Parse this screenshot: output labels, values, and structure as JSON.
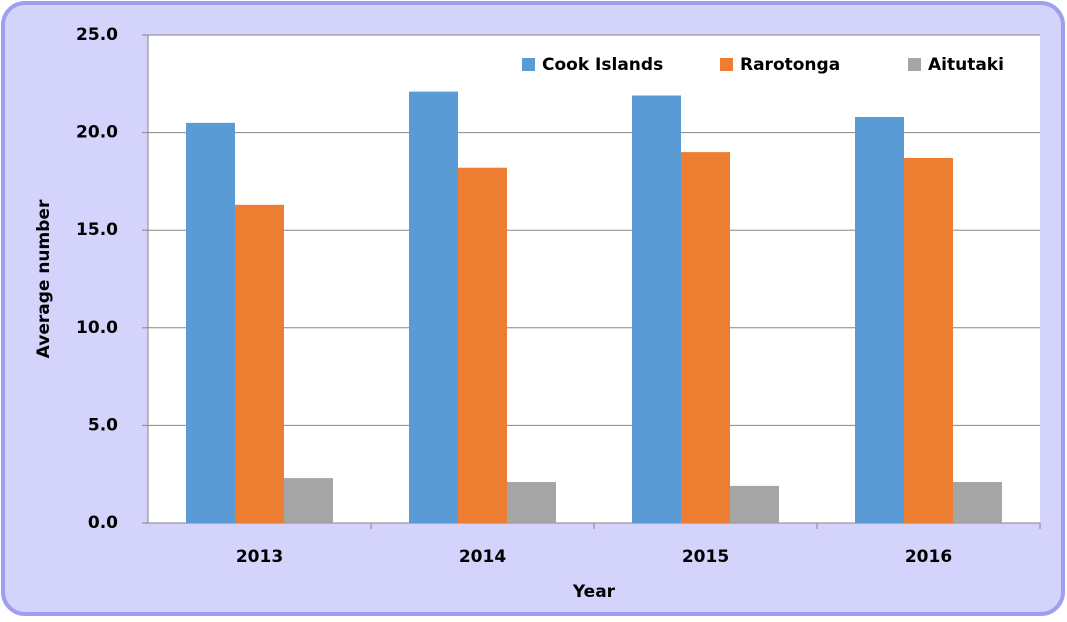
{
  "chart_data": {
    "type": "bar",
    "categories": [
      "2013",
      "2014",
      "2015",
      "2016"
    ],
    "series": [
      {
        "name": "Cook Islands",
        "color": "#5b9bd5",
        "values": [
          20.5,
          22.1,
          21.9,
          20.8
        ]
      },
      {
        "name": "Rarotonga",
        "color": "#ed7d31",
        "values": [
          16.3,
          18.2,
          19.0,
          18.7
        ]
      },
      {
        "name": "Aitutaki",
        "color": "#a5a5a5",
        "values": [
          2.3,
          2.1,
          1.9,
          2.1
        ]
      }
    ],
    "xlabel": "Year",
    "ylabel": "Average number",
    "ylim": [
      0,
      25
    ],
    "yticks": [
      {
        "value": 0,
        "label": "0.0"
      },
      {
        "value": 5,
        "label": "5.0"
      },
      {
        "value": 10,
        "label": "10.0"
      },
      {
        "value": 15,
        "label": "15.0"
      },
      {
        "value": 20,
        "label": "20.0"
      },
      {
        "value": 25,
        "label": "25.0"
      }
    ],
    "grid": true,
    "legend": "top-right"
  }
}
